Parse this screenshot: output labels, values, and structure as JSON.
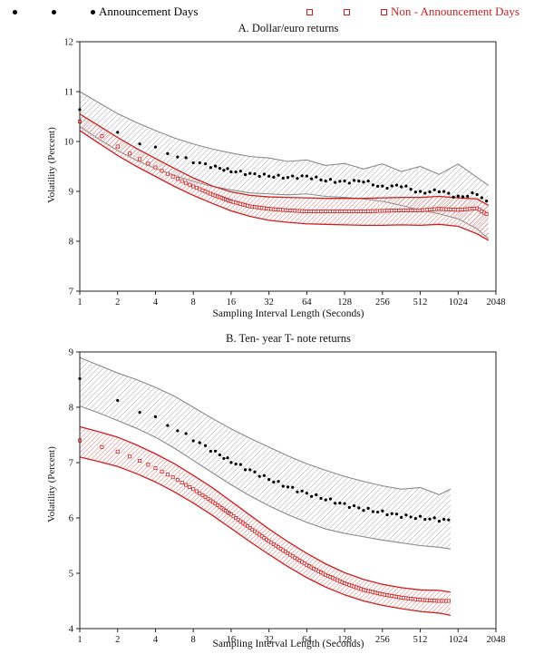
{
  "legend": {
    "items": [
      {
        "label": "Announcement Days",
        "marker": "dot",
        "color": "#000000"
      },
      {
        "label": "Non - Announcement Days",
        "marker": "square",
        "color": "#cc2020"
      }
    ]
  },
  "chart_data": [
    {
      "type": "line",
      "title": "A. Dollar/euro returns",
      "xlabel": "Sampling Interval Length (Seconds)",
      "ylabel": "Volatility (Percent)",
      "xscale": "log2",
      "xlim": [
        1,
        2048
      ],
      "ylim": [
        7,
        12
      ],
      "xticks": [
        1,
        2,
        4,
        8,
        16,
        32,
        64,
        128,
        256,
        512,
        1024,
        2048
      ],
      "yticks": [
        7,
        8,
        9,
        10,
        11,
        12
      ],
      "series": [
        {
          "name": "Announcement Days",
          "marker": "dot",
          "marker_color": "#000000",
          "band_color": "#8a8a8a",
          "hatch_color": "#bdbdbd",
          "x": [
            1,
            1.41,
            2,
            2.83,
            4,
            5.66,
            8,
            11.3,
            16,
            22.6,
            32,
            45.3,
            64,
            90.5,
            128,
            181,
            256,
            362,
            512,
            724,
            1024,
            1448,
            1783
          ],
          "mean": [
            10.62,
            10.4,
            10.18,
            10.0,
            9.86,
            9.72,
            9.6,
            9.5,
            9.41,
            9.35,
            9.31,
            9.28,
            9.3,
            9.22,
            9.19,
            9.21,
            9.08,
            9.12,
            8.97,
            9.02,
            8.88,
            8.96,
            8.75
          ],
          "band_upper": [
            11.0,
            10.78,
            10.56,
            10.38,
            10.22,
            10.07,
            9.95,
            9.85,
            9.77,
            9.7,
            9.67,
            9.6,
            9.63,
            9.52,
            9.56,
            9.45,
            9.55,
            9.4,
            9.5,
            9.34,
            9.55,
            9.28,
            9.12
          ],
          "band_lower": [
            10.3,
            10.05,
            9.82,
            9.62,
            9.46,
            9.32,
            9.2,
            9.1,
            9.03,
            8.97,
            8.95,
            8.93,
            8.95,
            8.9,
            8.88,
            8.85,
            8.8,
            8.72,
            8.62,
            8.55,
            8.45,
            8.25,
            8.05
          ]
        },
        {
          "name": "Non - Announcement Days",
          "marker": "square",
          "marker_color": "#cc2020",
          "band_color": "#cc2020",
          "hatch_color": "#e59a9a",
          "x": [
            1,
            1.41,
            2,
            2.83,
            4,
            5.66,
            8,
            11.3,
            16,
            22.6,
            32,
            45.3,
            64,
            90.5,
            128,
            181,
            256,
            362,
            512,
            724,
            1024,
            1448,
            1783
          ],
          "mean": [
            10.4,
            10.15,
            9.9,
            9.68,
            9.48,
            9.28,
            9.1,
            8.94,
            8.8,
            8.7,
            8.65,
            8.62,
            8.6,
            8.6,
            8.6,
            8.6,
            8.61,
            8.62,
            8.62,
            8.65,
            8.63,
            8.66,
            8.52
          ],
          "band_upper": [
            10.55,
            10.32,
            10.08,
            9.86,
            9.66,
            9.46,
            9.27,
            9.11,
            8.99,
            8.92,
            8.89,
            8.88,
            8.87,
            8.86,
            8.86,
            8.86,
            8.87,
            8.88,
            8.88,
            8.9,
            8.87,
            8.85,
            8.72
          ],
          "band_lower": [
            10.22,
            9.97,
            9.72,
            9.5,
            9.3,
            9.1,
            8.92,
            8.76,
            8.61,
            8.5,
            8.42,
            8.38,
            8.35,
            8.34,
            8.33,
            8.32,
            8.32,
            8.33,
            8.32,
            8.34,
            8.3,
            8.15,
            8.02
          ]
        }
      ]
    },
    {
      "type": "line",
      "title": "B. Ten- year T- note returns",
      "xlabel": "Sampling Interval Length (Seconds)",
      "ylabel": "Volatility (Percent)",
      "xscale": "log2",
      "xlim": [
        1,
        2048
      ],
      "ylim": [
        4,
        9
      ],
      "xticks": [
        1,
        2,
        4,
        8,
        16,
        32,
        64,
        128,
        256,
        512,
        1024,
        2048
      ],
      "yticks": [
        4,
        5,
        6,
        7,
        8,
        9
      ],
      "series": [
        {
          "name": "Announcement Days",
          "marker": "dot",
          "marker_color": "#000000",
          "band_color": "#8a8a8a",
          "hatch_color": "#bdbdbd",
          "x": [
            1,
            1.41,
            2,
            2.83,
            4,
            5.66,
            8,
            11.3,
            16,
            22.6,
            32,
            45.3,
            64,
            90.5,
            128,
            181,
            256,
            362,
            512,
            724,
            891
          ],
          "mean": [
            8.5,
            8.32,
            8.12,
            7.96,
            7.8,
            7.62,
            7.42,
            7.22,
            7.02,
            6.86,
            6.7,
            6.56,
            6.44,
            6.34,
            6.24,
            6.16,
            6.1,
            6.04,
            6.0,
            5.97,
            5.95
          ],
          "band_upper": [
            8.9,
            8.76,
            8.62,
            8.5,
            8.36,
            8.2,
            8.0,
            7.8,
            7.61,
            7.44,
            7.28,
            7.12,
            6.98,
            6.86,
            6.75,
            6.66,
            6.58,
            6.52,
            6.55,
            6.42,
            6.52
          ],
          "band_lower": [
            8.02,
            7.9,
            7.76,
            7.62,
            7.46,
            7.26,
            7.04,
            6.82,
            6.6,
            6.4,
            6.22,
            6.06,
            5.92,
            5.8,
            5.72,
            5.66,
            5.6,
            5.55,
            5.5,
            5.47,
            5.44
          ]
        },
        {
          "name": "Non - Announcement Days",
          "marker": "square",
          "marker_color": "#cc2020",
          "band_color": "#cc2020",
          "hatch_color": "#e59a9a",
          "x": [
            1,
            1.41,
            2,
            2.83,
            4,
            5.66,
            8,
            11.3,
            16,
            22.6,
            32,
            45.3,
            64,
            90.5,
            128,
            181,
            256,
            362,
            512,
            724,
            891
          ],
          "mean": [
            7.4,
            7.3,
            7.2,
            7.06,
            6.9,
            6.72,
            6.52,
            6.3,
            6.06,
            5.82,
            5.58,
            5.36,
            5.15,
            4.97,
            4.82,
            4.7,
            4.62,
            4.56,
            4.52,
            4.5,
            4.5
          ],
          "band_upper": [
            7.65,
            7.56,
            7.46,
            7.32,
            7.16,
            6.98,
            6.77,
            6.55,
            6.3,
            6.05,
            5.8,
            5.57,
            5.36,
            5.17,
            5.01,
            4.89,
            4.8,
            4.74,
            4.7,
            4.69,
            4.66
          ],
          "band_lower": [
            7.1,
            7.02,
            6.93,
            6.8,
            6.65,
            6.47,
            6.27,
            6.05,
            5.81,
            5.57,
            5.34,
            5.12,
            4.92,
            4.75,
            4.61,
            4.5,
            4.42,
            4.36,
            4.31,
            4.28,
            4.24
          ]
        }
      ]
    }
  ]
}
